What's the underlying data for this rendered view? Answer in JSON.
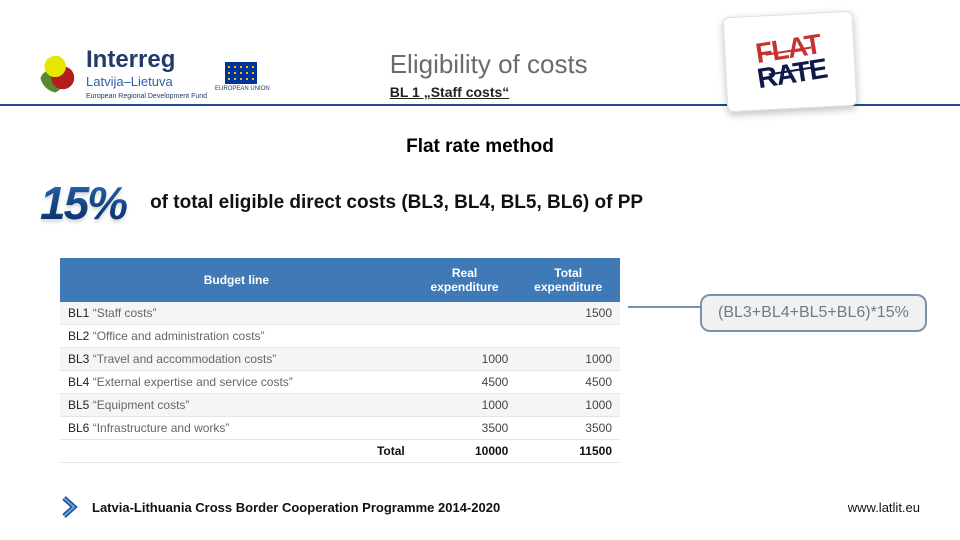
{
  "header": {
    "brand": "Interreg",
    "subbrand": "Latvija–Lietuva",
    "subtag": "European Regional Development Fund",
    "eu_label": "EUROPEAN UNION",
    "title": "Eligibility of costs",
    "subtitle": "BL 1 „Staff costs“"
  },
  "stamp": {
    "line1": "FLAT",
    "line2": "RATE"
  },
  "section_title": "Flat rate method",
  "percent_graphic": "15%",
  "body_text": "of total eligible direct costs (BL3, BL4, BL5, BL6) of PP",
  "table": {
    "columns": [
      "Budget line",
      "Real expenditure",
      "Total expenditure"
    ],
    "rows": [
      {
        "code": "BL1",
        "desc": "“Staff costs”",
        "real": "",
        "total": "1500",
        "alt": true
      },
      {
        "code": "BL2",
        "desc": "“Office and administration costs”",
        "real": "",
        "total": "",
        "alt": false
      },
      {
        "code": "BL3",
        "desc": "“Travel and accommodation costs”",
        "real": "1000",
        "total": "1000",
        "alt": true
      },
      {
        "code": "BL4",
        "desc": "“External expertise and service costs”",
        "real": "4500",
        "total": "4500",
        "alt": false
      },
      {
        "code": "BL5",
        "desc": "“Equipment costs”",
        "real": "1000",
        "total": "1000",
        "alt": true
      },
      {
        "code": "BL6",
        "desc": "“Infrastructure and works”",
        "real": "3500",
        "total": "3500",
        "alt": false
      }
    ],
    "total": {
      "label": "Total",
      "real": "10000",
      "total": "11500"
    }
  },
  "callout": "(BL3+BL4+BL5+BL6)*15%",
  "footer": {
    "programme": "Latvia-Lithuania Cross Border Cooperation Programme 2014-2020",
    "url": "www.latlit.eu"
  },
  "colors": {
    "header_hr": "#1e4b8f",
    "th_bg": "#3f79b6",
    "callout_border": "#7a92ad"
  }
}
